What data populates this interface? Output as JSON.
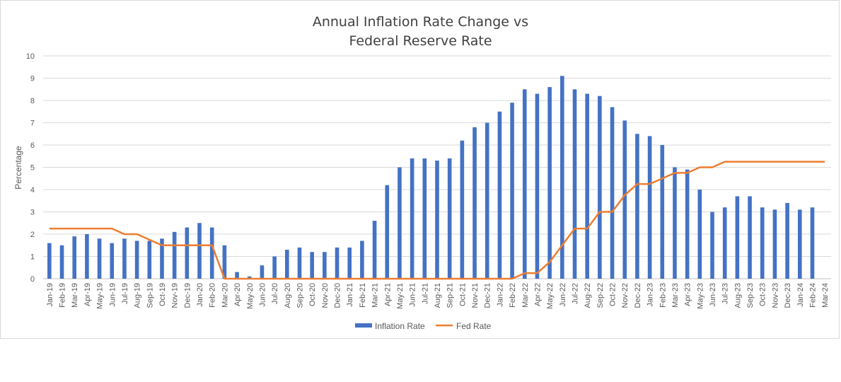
{
  "chart_data": {
    "type": "bar",
    "title_lines": [
      "Annual Inflation Rate Change vs",
      "Federal Reserve Rate"
    ],
    "xlabel": "",
    "ylabel": "Percentage",
    "ylim": [
      0,
      10
    ],
    "yticks": [
      0,
      1,
      2,
      3,
      4,
      5,
      6,
      7,
      8,
      9,
      10
    ],
    "grid": true,
    "legend_position": "bottom",
    "categories": [
      "Jan-19",
      "Feb-19",
      "Mar-19",
      "Apr-19",
      "May-19",
      "Jun-19",
      "Jul-19",
      "Aug-19",
      "Sep-19",
      "Oct-19",
      "Nov-19",
      "Dec-19",
      "Jan-20",
      "Feb-20",
      "Mar-20",
      "Apr-20",
      "May-20",
      "Jun-20",
      "Jul-20",
      "Aug-20",
      "Sep-20",
      "Oct-20",
      "Nov-20",
      "Dec-20",
      "Jan-21",
      "Feb-21",
      "Mar-21",
      "Apr-21",
      "May-21",
      "Jun-21",
      "Jul-21",
      "Aug-21",
      "Sep-21",
      "Oct-21",
      "Nov-21",
      "Dec-21",
      "Jan-22",
      "Feb-22",
      "Mar-22",
      "Apr-22",
      "May-22",
      "Jun-22",
      "Jul-22",
      "Aug-22",
      "Sep-22",
      "Oct-22",
      "Nov-22",
      "Dec-22",
      "Jan-23",
      "Feb-23",
      "Mar-23",
      "Apr-23",
      "May-23",
      "Jun-23",
      "Jul-23",
      "Aug-23",
      "Sep-23",
      "Oct-23",
      "Nov-23",
      "Dec-23",
      "Jan-24",
      "Feb-24",
      "Mar-24"
    ],
    "series": [
      {
        "name": "Inflation Rate",
        "type": "bar",
        "color": "#4472c4",
        "values": [
          1.6,
          1.5,
          1.9,
          2.0,
          1.8,
          1.6,
          1.8,
          1.7,
          1.7,
          1.8,
          2.1,
          2.3,
          2.5,
          2.3,
          1.5,
          0.3,
          0.1,
          0.6,
          1.0,
          1.3,
          1.4,
          1.2,
          1.2,
          1.4,
          1.4,
          1.7,
          2.6,
          4.2,
          5.0,
          5.4,
          5.4,
          5.3,
          5.4,
          6.2,
          6.8,
          7.0,
          7.5,
          7.9,
          8.5,
          8.3,
          8.6,
          9.1,
          8.5,
          8.3,
          8.2,
          7.7,
          7.1,
          6.5,
          6.4,
          6.0,
          5.0,
          4.9,
          4.0,
          3.0,
          3.2,
          3.7,
          3.7,
          3.2,
          3.1,
          3.4,
          3.1,
          3.2,
          null
        ]
      },
      {
        "name": "Fed Rate",
        "type": "line",
        "color": "#ed7d31",
        "values": [
          2.25,
          2.25,
          2.25,
          2.25,
          2.25,
          2.25,
          2.0,
          2.0,
          1.75,
          1.5,
          1.5,
          1.5,
          1.5,
          1.5,
          0,
          0,
          0,
          0,
          0,
          0,
          0,
          0,
          0,
          0,
          0,
          0,
          0,
          0,
          0,
          0,
          0,
          0,
          0,
          0,
          0,
          0,
          0,
          0,
          0.25,
          0.25,
          0.75,
          1.5,
          2.25,
          2.25,
          3.0,
          3.0,
          3.75,
          4.25,
          4.25,
          4.5,
          4.75,
          4.75,
          5.0,
          5.0,
          5.25,
          5.25,
          5.25,
          5.25,
          5.25,
          5.25,
          5.25,
          5.25,
          5.25
        ]
      }
    ]
  }
}
